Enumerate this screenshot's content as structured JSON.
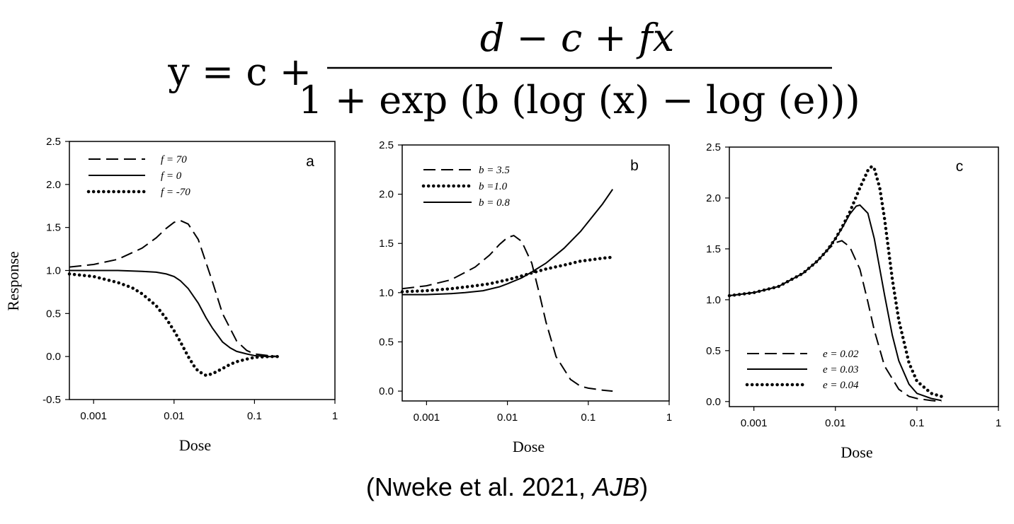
{
  "equation": {
    "lhs": "y = c +",
    "numerator": "d − c + fx",
    "denominator": "1 + exp (b (log (x) − log (e)))"
  },
  "citation": {
    "open": "(Nweke et al. 2021, ",
    "journal": "AJB",
    "close": ")"
  },
  "chart_data": [
    {
      "type": "line",
      "panel": "a",
      "xscale": "log",
      "xlim": [
        0.0005,
        1
      ],
      "ylim": [
        -0.5,
        2.5
      ],
      "xticks": [
        0.001,
        0.01,
        0.1,
        1
      ],
      "xtick_labels": [
        "0.001",
        "0.01",
        "0.1",
        "1"
      ],
      "yticks": [
        -0.5,
        0,
        0.5,
        1,
        1.5,
        2,
        2.5
      ],
      "ytick_labels": [
        "-0.5",
        "0.0",
        "0.5",
        "1.0",
        "1.5",
        "2.0",
        "2.5"
      ],
      "xlabel": "Dose",
      "ylabel": "Response",
      "legend_position": "top-left",
      "series": [
        {
          "name": "f = 70",
          "style": "dashed",
          "x": [
            0.0005,
            0.001,
            0.002,
            0.004,
            0.006,
            0.008,
            0.01,
            0.012,
            0.015,
            0.02,
            0.03,
            0.04,
            0.06,
            0.08,
            0.1,
            0.15,
            0.2
          ],
          "y": [
            1.04,
            1.07,
            1.13,
            1.26,
            1.38,
            1.49,
            1.56,
            1.58,
            1.54,
            1.36,
            0.87,
            0.5,
            0.18,
            0.07,
            0.03,
            0.01,
            0.0
          ]
        },
        {
          "name": "f = 0",
          "style": "solid",
          "x": [
            0.0005,
            0.001,
            0.002,
            0.004,
            0.006,
            0.008,
            0.01,
            0.012,
            0.015,
            0.02,
            0.025,
            0.03,
            0.04,
            0.05,
            0.06,
            0.08,
            0.1,
            0.15,
            0.2
          ],
          "y": [
            1.0,
            1.0,
            1.0,
            0.99,
            0.98,
            0.96,
            0.93,
            0.88,
            0.79,
            0.62,
            0.45,
            0.33,
            0.17,
            0.1,
            0.06,
            0.03,
            0.01,
            0.0,
            0.0
          ]
        },
        {
          "name": "f = -70",
          "style": "dotted",
          "x": [
            0.0005,
            0.001,
            0.002,
            0.003,
            0.004,
            0.006,
            0.008,
            0.01,
            0.012,
            0.015,
            0.018,
            0.02,
            0.025,
            0.03,
            0.04,
            0.05,
            0.06,
            0.08,
            0.1,
            0.15,
            0.2
          ],
          "y": [
            0.96,
            0.93,
            0.86,
            0.8,
            0.73,
            0.59,
            0.44,
            0.3,
            0.17,
            0.0,
            -0.12,
            -0.17,
            -0.22,
            -0.2,
            -0.14,
            -0.09,
            -0.06,
            -0.03,
            -0.01,
            0.0,
            0.0
          ]
        }
      ]
    },
    {
      "type": "line",
      "panel": "b",
      "xscale": "log",
      "xlim": [
        0.0005,
        1
      ],
      "ylim": [
        -0.1,
        2.5
      ],
      "xticks": [
        0.001,
        0.01,
        0.1,
        1
      ],
      "xtick_labels": [
        "0.001",
        "0.01",
        "0.1",
        "1"
      ],
      "yticks": [
        0,
        0.5,
        1,
        1.5,
        2,
        2.5
      ],
      "ytick_labels": [
        "0.0",
        "0.5",
        "1.0",
        "1.5",
        "2.0",
        "2.5"
      ],
      "xlabel": "Dose",
      "ylabel": "",
      "legend_position": "top-left",
      "series": [
        {
          "name": "b = 3.5",
          "style": "dashed",
          "x": [
            0.0005,
            0.001,
            0.002,
            0.004,
            0.006,
            0.008,
            0.01,
            0.012,
            0.015,
            0.02,
            0.025,
            0.03,
            0.04,
            0.06,
            0.08,
            0.1,
            0.15,
            0.2
          ],
          "y": [
            1.04,
            1.07,
            1.13,
            1.26,
            1.38,
            1.49,
            1.56,
            1.58,
            1.52,
            1.3,
            0.98,
            0.7,
            0.35,
            0.12,
            0.05,
            0.03,
            0.01,
            0.0
          ]
        },
        {
          "name": "b =1.0",
          "style": "dotted",
          "x": [
            0.0005,
            0.001,
            0.002,
            0.004,
            0.006,
            0.01,
            0.015,
            0.02,
            0.03,
            0.05,
            0.08,
            0.1,
            0.15,
            0.2
          ],
          "y": [
            1.01,
            1.02,
            1.04,
            1.07,
            1.09,
            1.13,
            1.17,
            1.2,
            1.24,
            1.28,
            1.32,
            1.33,
            1.35,
            1.36
          ]
        },
        {
          "name": "b = 0.8",
          "style": "solid",
          "x": [
            0.0005,
            0.001,
            0.002,
            0.003,
            0.005,
            0.008,
            0.01,
            0.015,
            0.02,
            0.03,
            0.05,
            0.08,
            0.1,
            0.15,
            0.2
          ],
          "y": [
            0.98,
            0.98,
            0.99,
            1.0,
            1.02,
            1.06,
            1.09,
            1.15,
            1.21,
            1.3,
            1.45,
            1.62,
            1.72,
            1.9,
            2.05
          ]
        }
      ]
    },
    {
      "type": "line",
      "panel": "c",
      "xscale": "log",
      "xlim": [
        0.0005,
        1
      ],
      "ylim": [
        -0.05,
        2.5
      ],
      "xticks": [
        0.001,
        0.01,
        0.1,
        1
      ],
      "xtick_labels": [
        "0.001",
        "0.01",
        "0.1",
        "1"
      ],
      "yticks": [
        0,
        0.5,
        1,
        1.5,
        2,
        2.5
      ],
      "ytick_labels": [
        "0.0",
        "0.5",
        "1.0",
        "1.5",
        "2.0",
        "2.5"
      ],
      "xlabel": "Dose",
      "ylabel": "",
      "legend_position": "bottom-left",
      "series": [
        {
          "name": "e = 0.02",
          "style": "dashed",
          "x": [
            0.0005,
            0.001,
            0.002,
            0.004,
            0.006,
            0.008,
            0.01,
            0.012,
            0.015,
            0.02,
            0.025,
            0.03,
            0.04,
            0.06,
            0.08,
            0.1,
            0.15,
            0.2
          ],
          "y": [
            1.04,
            1.07,
            1.13,
            1.26,
            1.38,
            1.49,
            1.56,
            1.58,
            1.52,
            1.3,
            0.98,
            0.7,
            0.35,
            0.12,
            0.05,
            0.03,
            0.01,
            0.0
          ]
        },
        {
          "name": "e = 0.03",
          "style": "solid",
          "x": [
            0.0005,
            0.001,
            0.002,
            0.004,
            0.006,
            0.008,
            0.01,
            0.012,
            0.015,
            0.018,
            0.02,
            0.025,
            0.03,
            0.04,
            0.05,
            0.06,
            0.08,
            0.1,
            0.15,
            0.2
          ],
          "y": [
            1.04,
            1.07,
            1.13,
            1.26,
            1.38,
            1.49,
            1.6,
            1.7,
            1.84,
            1.92,
            1.93,
            1.85,
            1.6,
            1.05,
            0.65,
            0.4,
            0.17,
            0.08,
            0.03,
            0.01
          ]
        },
        {
          "name": "e = 0.04",
          "style": "dotted",
          "x": [
            0.0005,
            0.001,
            0.002,
            0.004,
            0.006,
            0.008,
            0.01,
            0.012,
            0.015,
            0.02,
            0.025,
            0.028,
            0.03,
            0.035,
            0.04,
            0.05,
            0.06,
            0.08,
            0.1,
            0.15,
            0.2
          ],
          "y": [
            1.04,
            1.07,
            1.13,
            1.26,
            1.38,
            1.49,
            1.6,
            1.71,
            1.86,
            2.1,
            2.27,
            2.31,
            2.29,
            2.1,
            1.8,
            1.2,
            0.8,
            0.38,
            0.2,
            0.08,
            0.05
          ]
        }
      ]
    }
  ]
}
